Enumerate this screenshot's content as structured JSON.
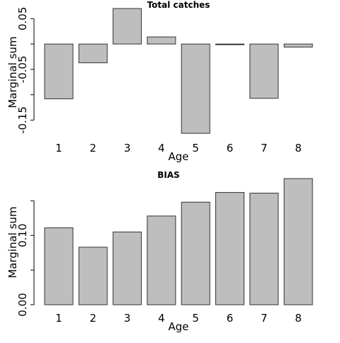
{
  "chart_data": [
    {
      "type": "bar",
      "title": "Total catches",
      "xlabel": "Age",
      "ylabel": "Marginal sum",
      "categories": [
        "1",
        "2",
        "3",
        "4",
        "5",
        "6",
        "7",
        "8"
      ],
      "values": [
        -0.108,
        -0.037,
        0.07,
        0.014,
        -0.176,
        -0.001,
        -0.107,
        -0.006
      ],
      "yticks": [
        -0.15,
        -0.1,
        -0.05,
        0.0,
        0.05
      ],
      "ytick_labels": [
        "-0.15",
        "",
        "-0.05",
        "",
        "0.05"
      ],
      "ylim": [
        -0.18,
        0.07
      ],
      "colors": {
        "bar_fill": "#bebebe",
        "bar_stroke": "#333333"
      }
    },
    {
      "type": "bar",
      "title": "BIAS",
      "xlabel": "Age",
      "ylabel": "Marginal sum",
      "categories": [
        "1",
        "2",
        "3",
        "4",
        "5",
        "6",
        "7",
        "8"
      ],
      "values": [
        0.111,
        0.083,
        0.105,
        0.128,
        0.148,
        0.162,
        0.161,
        0.182
      ],
      "yticks": [
        0.0,
        0.05,
        0.1,
        0.15
      ],
      "ytick_labels": [
        "0.00",
        "",
        "0.10",
        ""
      ],
      "ylim": [
        0,
        0.182
      ],
      "colors": {
        "bar_fill": "#bebebe",
        "bar_stroke": "#333333"
      }
    }
  ]
}
